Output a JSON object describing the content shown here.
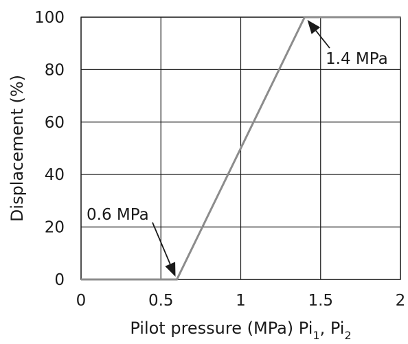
{
  "chart_data": {
    "type": "line",
    "title": "",
    "xlabel": "Pilot pressure (MPa) Pi",
    "xlabel_subscript_1": "1",
    "xlabel_sep": ", Pi",
    "xlabel_subscript_2": "2",
    "ylabel": "Displacement (%)",
    "xlim": [
      0,
      2
    ],
    "ylim": [
      0,
      100
    ],
    "x_ticks": [
      0,
      0.5,
      1,
      1.5,
      2
    ],
    "x_tick_labels": [
      "0",
      "0.5",
      "1",
      "1.5",
      "2"
    ],
    "y_ticks": [
      0,
      20,
      40,
      60,
      80,
      100
    ],
    "y_tick_labels": [
      "0",
      "20",
      "40",
      "60",
      "80",
      "100"
    ],
    "grid": true,
    "series": [
      {
        "x": [
          0,
          0.6,
          1.4,
          2
        ],
        "y": [
          0,
          0,
          100,
          100
        ],
        "color": "#8c8c8c"
      }
    ],
    "annotations": [
      {
        "text": "0.6 MPa",
        "x": 0.6,
        "y": 0
      },
      {
        "text": "1.4 MPa",
        "x": 1.4,
        "y": 100
      }
    ]
  }
}
